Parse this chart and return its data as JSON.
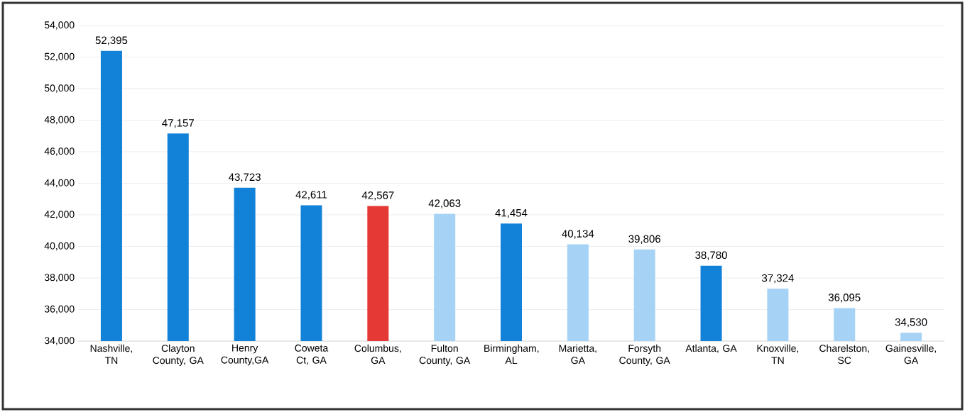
{
  "chart_data": {
    "type": "bar",
    "categories": [
      "Nashville, TN",
      "Clayton County, GA",
      "Henry County,GA",
      "Coweta Ct, GA",
      "Columbus, GA",
      "Fulton County, GA",
      "Birmingham, AL",
      "Marietta, GA",
      "Forsyth County, GA",
      "Atlanta, GA",
      "Knoxville, TN",
      "Charelston, SC",
      "Gainesville, GA"
    ],
    "values": [
      52395,
      47157,
      43723,
      42611,
      42567,
      42063,
      41454,
      40134,
      39806,
      38780,
      37324,
      36095,
      34530
    ],
    "value_labels": [
      "52,395",
      "47,157",
      "43,723",
      "42,611",
      "42,567",
      "42,063",
      "41,454",
      "40,134",
      "39,806",
      "38,780",
      "37,324",
      "36,095",
      "34,530"
    ],
    "colors": [
      "#1282d8",
      "#1282d8",
      "#1282d8",
      "#1282d8",
      "#e53935",
      "#a6d3f5",
      "#1282d8",
      "#a6d3f5",
      "#a6d3f5",
      "#1282d8",
      "#a6d3f5",
      "#a6d3f5",
      "#a6d3f5"
    ],
    "ylim": [
      34000,
      54000
    ],
    "yticks": [
      {
        "value": 34000,
        "label": "34,000"
      },
      {
        "value": 36000,
        "label": "36,000"
      },
      {
        "value": 38000,
        "label": "38,000"
      },
      {
        "value": 40000,
        "label": "40,000"
      },
      {
        "value": 42000,
        "label": "42,000"
      },
      {
        "value": 44000,
        "label": "44,000"
      },
      {
        "value": 46000,
        "label": "46,000"
      },
      {
        "value": 48000,
        "label": "48,000"
      },
      {
        "value": 50000,
        "label": "50,000"
      },
      {
        "value": 52000,
        "label": "52,000"
      },
      {
        "value": 54000,
        "label": "54,000"
      }
    ],
    "grid": "y"
  }
}
